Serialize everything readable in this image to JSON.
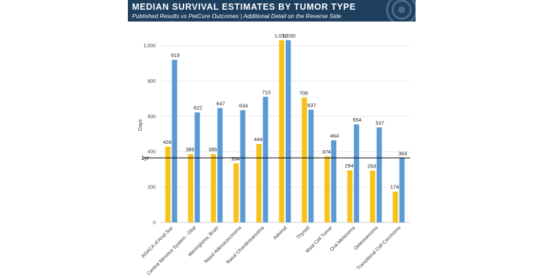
{
  "banner": {
    "title": "MEDIAN SURVIVAL ESTIMATES BY TUMOR TYPE",
    "subtitle": "Published Results vs PetCure Outcomes  |  Additional Detail on the Reverse Side",
    "background": "#1f3f5f",
    "text_color": "#ffffff",
    "logo_icon": "concentric-circles-logo-icon"
  },
  "chart_data": {
    "type": "bar",
    "ylabel": "Days",
    "xlabel": "",
    "ylim": [
      0,
      1100
    ],
    "yticks": [
      0,
      200,
      400,
      600,
      800,
      1000
    ],
    "ytick_labels": [
      "0",
      "200",
      "400",
      "600",
      "800",
      "1,000"
    ],
    "grid": true,
    "legend": "none",
    "categories": [
      "AGACA of Anal Sac",
      "Central Nervous System - Glial",
      "Meningioma, Brain",
      "Nasal Adenocarcinoma",
      "Nasal Chondrosarcoma",
      "Adrenal",
      "Thyroid",
      "Mast Cell Tumor",
      "Oral Melanoma",
      "Osteosarcoma",
      "Transitional Cell Carcinoma"
    ],
    "series": [
      {
        "color": "#f7c21b",
        "values": [
          428,
          386,
          386,
          334,
          444,
          1030,
          706,
          374,
          294,
          293,
          174
        ],
        "labels": [
          "428",
          "386",
          "386",
          "334",
          "444",
          "1,030",
          "706",
          "374",
          "294",
          "293",
          "174"
        ]
      },
      {
        "color": "#5b9bd5",
        "values": [
          919,
          622,
          647,
          634,
          710,
          1030,
          637,
          464,
          554,
          537,
          364
        ],
        "labels": [
          "919",
          "622",
          "647",
          "634",
          "710",
          "1,030",
          "637",
          "464",
          "554",
          "537",
          "364"
        ]
      }
    ],
    "reference_line": {
      "value": 365,
      "label": "1yr",
      "color": "#000000"
    }
  }
}
